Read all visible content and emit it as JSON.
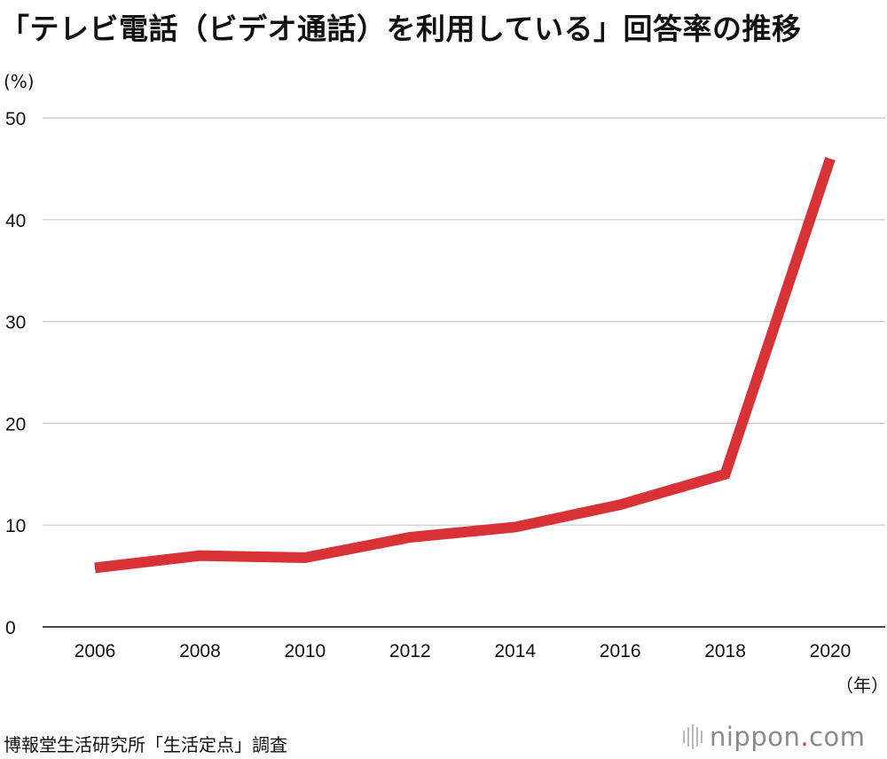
{
  "title": "「テレビ電話（ビデオ通話）を利用している」回答率の推移",
  "source": "博報堂生活研究所「生活定点」調査",
  "logo": {
    "name": "nippon",
    "dot": ".",
    "tld": "com"
  },
  "colors": {
    "line": "#d83236",
    "grid": "#c8c8c8",
    "axis": "#111111"
  },
  "chart_data": {
    "type": "line",
    "title": "「テレビ電話（ビデオ通話）を利用している」回答率の推移",
    "ylabel": "(%)",
    "xlabel": "（年）",
    "x": [
      "2006",
      "2008",
      "2010",
      "2012",
      "2014",
      "2016",
      "2018",
      "2020"
    ],
    "series": [
      {
        "values": [
          5.8,
          7.0,
          6.8,
          8.8,
          9.8,
          12.0,
          15.0,
          46.0
        ]
      }
    ],
    "ylim": [
      0,
      50
    ],
    "yticks": [
      0,
      10,
      20,
      30,
      40,
      50
    ],
    "grid": true,
    "legend": "none"
  }
}
